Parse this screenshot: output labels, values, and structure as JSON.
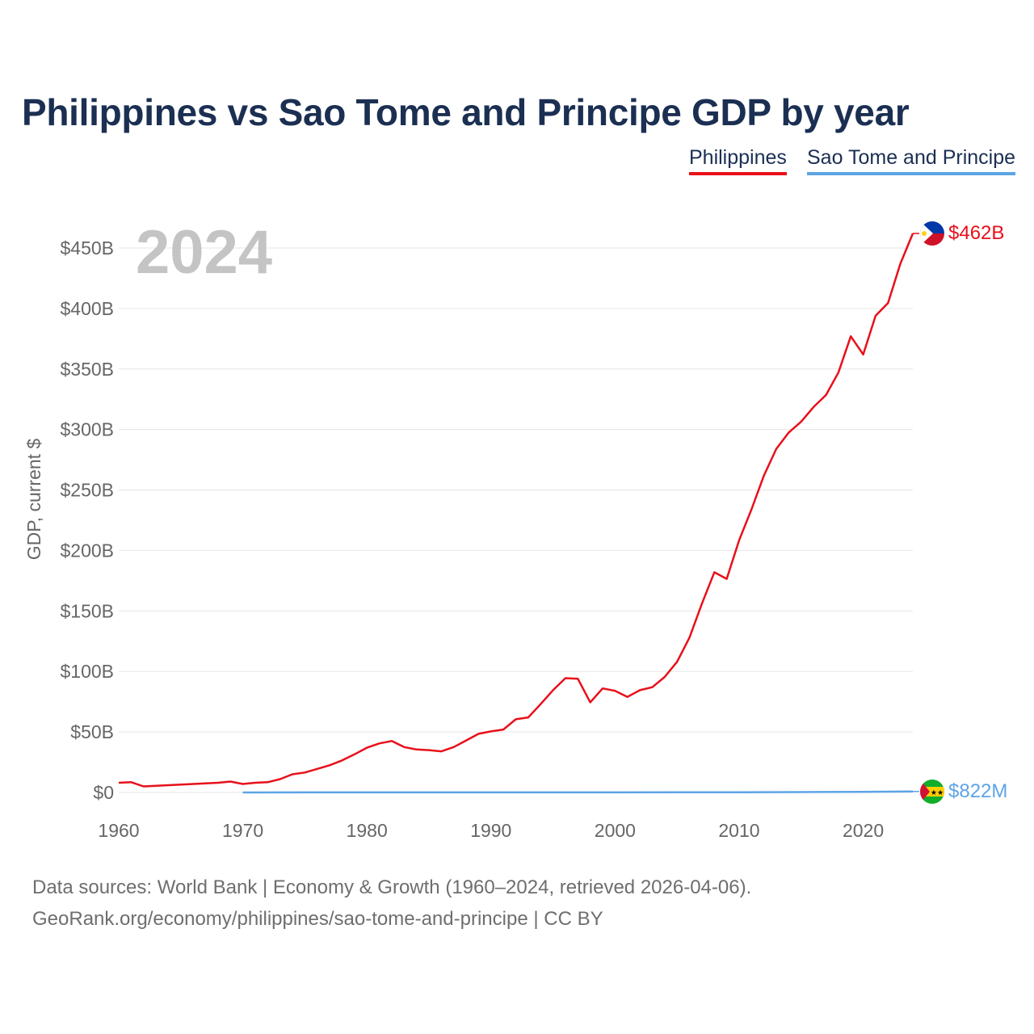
{
  "colors": {
    "philippines": "#e8101a",
    "sao_tome": "#5da4e6",
    "title": "#1b2f52",
    "grid": "#e6e6e6",
    "axis_text": "#666666",
    "year_watermark": "#c4c4c4"
  },
  "chart_data": {
    "type": "line",
    "title": "Philippines vs Sao Tome and Principe GDP by year",
    "ylabel": "GDP, current $",
    "xlabel": "",
    "year_label": "2024",
    "xlim": [
      1960,
      2024
    ],
    "ylim": [
      0,
      462
    ],
    "y_unit": "billions USD",
    "x_ticks": [
      "1960",
      "1970",
      "1980",
      "1990",
      "2000",
      "2010",
      "2020"
    ],
    "y_ticks": [
      {
        "value": 0,
        "label": "$0"
      },
      {
        "value": 50,
        "label": "$50B"
      },
      {
        "value": 100,
        "label": "$100B"
      },
      {
        "value": 150,
        "label": "$150B"
      },
      {
        "value": 200,
        "label": "$200B"
      },
      {
        "value": 250,
        "label": "$250B"
      },
      {
        "value": 300,
        "label": "$300B"
      },
      {
        "value": 350,
        "label": "$350B"
      },
      {
        "value": 400,
        "label": "$400B"
      },
      {
        "value": 450,
        "label": "$450B"
      }
    ],
    "series": [
      {
        "name": "Philippines",
        "end_label": "$462B",
        "flag_icon": "philippines-flag-icon",
        "x": [
          1960,
          1961,
          1962,
          1963,
          1964,
          1965,
          1966,
          1967,
          1968,
          1969,
          1970,
          1971,
          1972,
          1973,
          1974,
          1975,
          1976,
          1977,
          1978,
          1979,
          1980,
          1981,
          1982,
          1983,
          1984,
          1985,
          1986,
          1987,
          1988,
          1989,
          1990,
          1991,
          1992,
          1993,
          1994,
          1995,
          1996,
          1997,
          1998,
          1999,
          2000,
          2001,
          2002,
          2003,
          2004,
          2005,
          2006,
          2007,
          2008,
          2009,
          2010,
          2011,
          2012,
          2013,
          2014,
          2015,
          2016,
          2017,
          2018,
          2019,
          2020,
          2021,
          2022,
          2023,
          2024
        ],
        "values": [
          8.0,
          8.5,
          5.0,
          5.5,
          6.0,
          6.5,
          7.0,
          7.5,
          8.0,
          9.0,
          7.0,
          8.0,
          8.5,
          11.0,
          15.0,
          16.5,
          19.5,
          22.5,
          26.5,
          31.5,
          37.0,
          40.5,
          42.5,
          37.5,
          35.5,
          35.0,
          34.0,
          37.5,
          43.0,
          48.5,
          50.5,
          52.0,
          60.5,
          62.0,
          73.0,
          84.5,
          94.5,
          94.0,
          74.5,
          86.0,
          84.0,
          79.0,
          84.5,
          87.0,
          95.5,
          108.0,
          128.0,
          156.0,
          182.0,
          176.5,
          208.5,
          234.0,
          262.0,
          284.0,
          297.5,
          306.5,
          318.5,
          328.5,
          347.0,
          377.0,
          362.0,
          394.0,
          404.5,
          437.0,
          462.0
        ]
      },
      {
        "name": "Sao Tome and Principe",
        "end_label": "$822M",
        "flag_icon": "sao-tome-flag-icon",
        "x": [
          1970,
          1975,
          1980,
          1985,
          1990,
          1995,
          2000,
          2005,
          2010,
          2015,
          2020,
          2024
        ],
        "values": [
          0.03,
          0.04,
          0.05,
          0.06,
          0.08,
          0.1,
          0.08,
          0.13,
          0.2,
          0.32,
          0.47,
          0.822
        ]
      }
    ],
    "source_line_1": "Data sources: World Bank | Economy & Growth (1960–2024, retrieved 2026-04-06).",
    "source_line_2": "GeoRank.org/economy/philippines/sao-tome-and-principe | CC BY"
  }
}
